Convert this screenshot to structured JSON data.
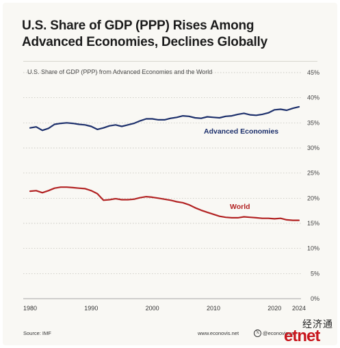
{
  "title_lines": [
    "U.S. Share of GDP (PPP) Rises Among",
    "Advanced Economies, Declines Globally"
  ],
  "chart_data": {
    "type": "line",
    "title": "U.S. Share of GDP (PPP) Rises Among Advanced Economies, Declines Globally",
    "subtitle": "U.S. Share of GDP (PPP) from Advanced Economies and the World",
    "xlabel": "",
    "ylabel": "",
    "xlim": [
      1980,
      2024
    ],
    "ylim": [
      0,
      45
    ],
    "x_ticks": [
      1980,
      1990,
      2000,
      2010,
      2020,
      2024
    ],
    "y_ticks": [
      0,
      5,
      10,
      15,
      20,
      25,
      30,
      35,
      40,
      45
    ],
    "y_tick_labels": [
      "0%",
      "5%",
      "10%",
      "15%",
      "20%",
      "25%",
      "30%",
      "35%",
      "40%",
      "45%"
    ],
    "y_axis_side": "right",
    "grid": "horizontal",
    "legend": "inline labels",
    "series": [
      {
        "name": "Advanced Economies",
        "color": "#1c2f6b",
        "x": [
          1980,
          1981,
          1982,
          1983,
          1984,
          1985,
          1986,
          1987,
          1988,
          1989,
          1990,
          1991,
          1992,
          1993,
          1994,
          1995,
          1996,
          1997,
          1998,
          1999,
          2000,
          2001,
          2002,
          2003,
          2004,
          2005,
          2006,
          2007,
          2008,
          2009,
          2010,
          2011,
          2012,
          2013,
          2014,
          2015,
          2016,
          2017,
          2018,
          2019,
          2020,
          2021,
          2022,
          2023,
          2024
        ],
        "values": [
          34.0,
          34.2,
          33.5,
          33.9,
          34.7,
          34.9,
          35.0,
          34.9,
          34.7,
          34.6,
          34.3,
          33.7,
          34.0,
          34.4,
          34.6,
          34.3,
          34.6,
          34.9,
          35.4,
          35.8,
          35.8,
          35.6,
          35.6,
          35.9,
          36.1,
          36.4,
          36.3,
          36.0,
          35.9,
          36.2,
          36.1,
          36.0,
          36.3,
          36.4,
          36.7,
          36.9,
          36.6,
          36.5,
          36.7,
          37.0,
          37.6,
          37.7,
          37.5,
          37.9,
          38.2
        ]
      },
      {
        "name": "World",
        "color": "#b22222",
        "x": [
          1980,
          1981,
          1982,
          1983,
          1984,
          1985,
          1986,
          1987,
          1988,
          1989,
          1990,
          1991,
          1992,
          1993,
          1994,
          1995,
          1996,
          1997,
          1998,
          1999,
          2000,
          2001,
          2002,
          2003,
          2004,
          2005,
          2006,
          2007,
          2008,
          2009,
          2010,
          2011,
          2012,
          2013,
          2014,
          2015,
          2016,
          2017,
          2018,
          2019,
          2020,
          2021,
          2022,
          2023,
          2024
        ],
        "values": [
          21.4,
          21.5,
          21.1,
          21.5,
          22.0,
          22.2,
          22.2,
          22.1,
          22.0,
          21.9,
          21.5,
          20.9,
          19.6,
          19.7,
          19.9,
          19.7,
          19.7,
          19.8,
          20.1,
          20.3,
          20.2,
          20.0,
          19.8,
          19.6,
          19.3,
          19.1,
          18.7,
          18.1,
          17.6,
          17.2,
          16.8,
          16.4,
          16.2,
          16.1,
          16.1,
          16.3,
          16.2,
          16.1,
          16.0,
          16.0,
          15.9,
          16.0,
          15.7,
          15.6,
          15.6
        ]
      }
    ],
    "series_labels": [
      "Advanced Economies",
      "World"
    ]
  },
  "footer": {
    "source": "Source: IMF",
    "site": "www.econovis.net",
    "x_icon": "x-logo-icon",
    "handle": "@econovisual"
  },
  "watermark": {
    "text_cn": "经济通",
    "logo": "etnet"
  }
}
